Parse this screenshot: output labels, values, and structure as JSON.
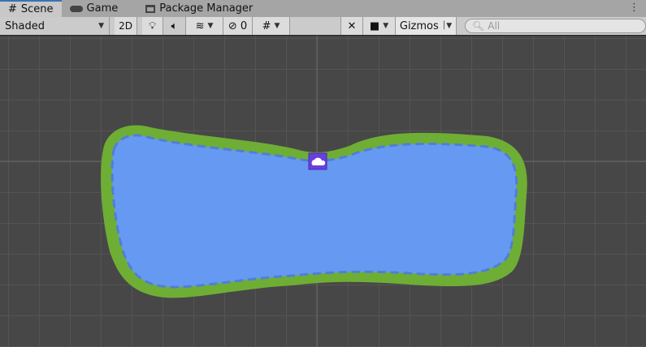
{
  "tabs": [
    {
      "label": "Scene",
      "icon": "grid-icon",
      "active": true
    },
    {
      "label": "Game",
      "icon": "gamepad-icon"
    },
    {
      "label": "Package Manager",
      "icon": "package-icon"
    }
  ],
  "toolbar": {
    "shading": "Shaded",
    "mode_2d": "2D",
    "hidden_count": "0",
    "gizmos": "Gizmos",
    "search_placeholder": "All"
  },
  "colors": {
    "water": "#6699f2",
    "grass": "#6fae35",
    "icon_bg": "#6a3fe0"
  }
}
